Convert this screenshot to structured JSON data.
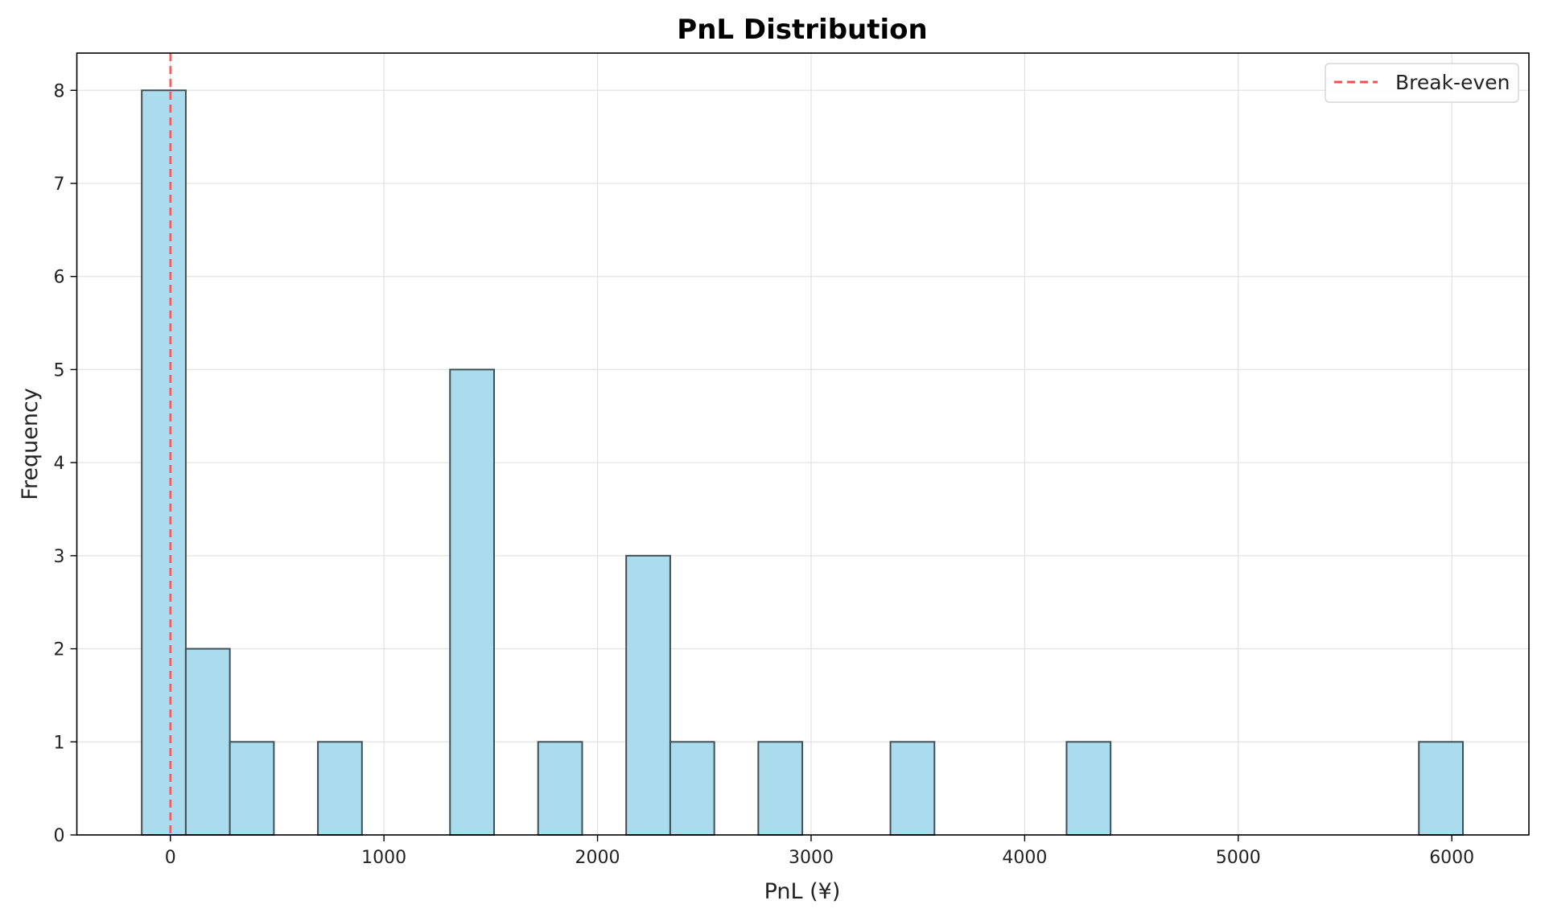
{
  "chart_data": {
    "type": "bar",
    "subtype": "histogram",
    "title": "PnL Distribution",
    "xlabel": "PnL (¥)",
    "ylabel": "Frequency",
    "xlim": [
      -438,
      6361
    ],
    "ylim": [
      0,
      8.4
    ],
    "grid": true,
    "bin_start": -134,
    "bin_width": 206.2,
    "counts": [
      8,
      2,
      1,
      0,
      1,
      0,
      0,
      5,
      0,
      1,
      0,
      3,
      1,
      0,
      1,
      0,
      0,
      1,
      0,
      0,
      0,
      1,
      0,
      0,
      0,
      0,
      0,
      0,
      0,
      1
    ],
    "xticks": [
      0,
      1000,
      2000,
      3000,
      4000,
      5000,
      6000
    ],
    "xtick_labels": [
      "0",
      "1000",
      "2000",
      "3000",
      "4000",
      "5000",
      "6000"
    ],
    "yticks": [
      0,
      1,
      2,
      3,
      4,
      5,
      6,
      7,
      8
    ],
    "ytick_labels": [
      "0",
      "1",
      "2",
      "3",
      "4",
      "5",
      "6",
      "7",
      "8"
    ],
    "reference_line": {
      "x": 0,
      "name": "Break-even",
      "color": "#ff4d4d",
      "style": "dashed"
    },
    "legend": {
      "placement": "top-right",
      "entries": [
        "Break-even"
      ]
    },
    "colors": {
      "bar_fill": "#abdcee",
      "bar_edge": "#3f4f55"
    }
  }
}
